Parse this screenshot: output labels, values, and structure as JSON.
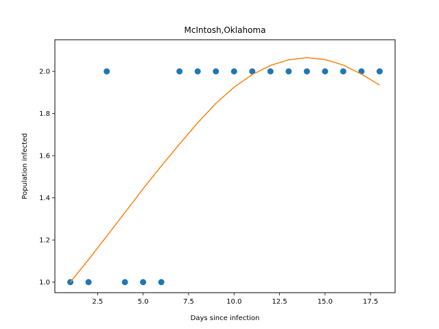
{
  "chart_data": {
    "type": "scatter",
    "title": "McIntosh,Oklahoma",
    "xlabel": "Days since infection",
    "ylabel": "Population infected",
    "xlim": [
      0.15,
      18.85
    ],
    "ylim": [
      0.95,
      2.15
    ],
    "xticks": [
      2.5,
      5.0,
      7.5,
      10.0,
      12.5,
      15.0,
      17.5
    ],
    "xtick_labels": [
      "2.5",
      "5.0",
      "7.5",
      "10.0",
      "12.5",
      "15.0",
      "17.5"
    ],
    "yticks": [
      1.0,
      1.2,
      1.4,
      1.6,
      1.8,
      2.0
    ],
    "ytick_labels": [
      "1.0",
      "1.2",
      "1.4",
      "1.6",
      "1.8",
      "2.0"
    ],
    "grid": false,
    "series": [
      {
        "kind": "scatter",
        "color": "#1f77b4",
        "x": [
          1,
          2,
          3,
          4,
          5,
          6,
          7,
          8,
          9,
          10,
          11,
          12,
          13,
          14,
          15,
          16,
          17,
          18
        ],
        "y": [
          1,
          1,
          2,
          1,
          1,
          1,
          2,
          2,
          2,
          2,
          2,
          2,
          2,
          2,
          2,
          2,
          2,
          2
        ]
      },
      {
        "kind": "line",
        "color": "#ff7f0e",
        "x": [
          1,
          2,
          3,
          4,
          5,
          6,
          7,
          8,
          9,
          10,
          11,
          12,
          13,
          14,
          15,
          16,
          17,
          18
        ],
        "y": [
          1.0,
          1.107,
          1.218,
          1.33,
          1.443,
          1.551,
          1.655,
          1.756,
          1.848,
          1.925,
          1.985,
          2.028,
          2.055,
          2.065,
          2.056,
          2.03,
          1.987,
          1.935
        ]
      }
    ]
  }
}
